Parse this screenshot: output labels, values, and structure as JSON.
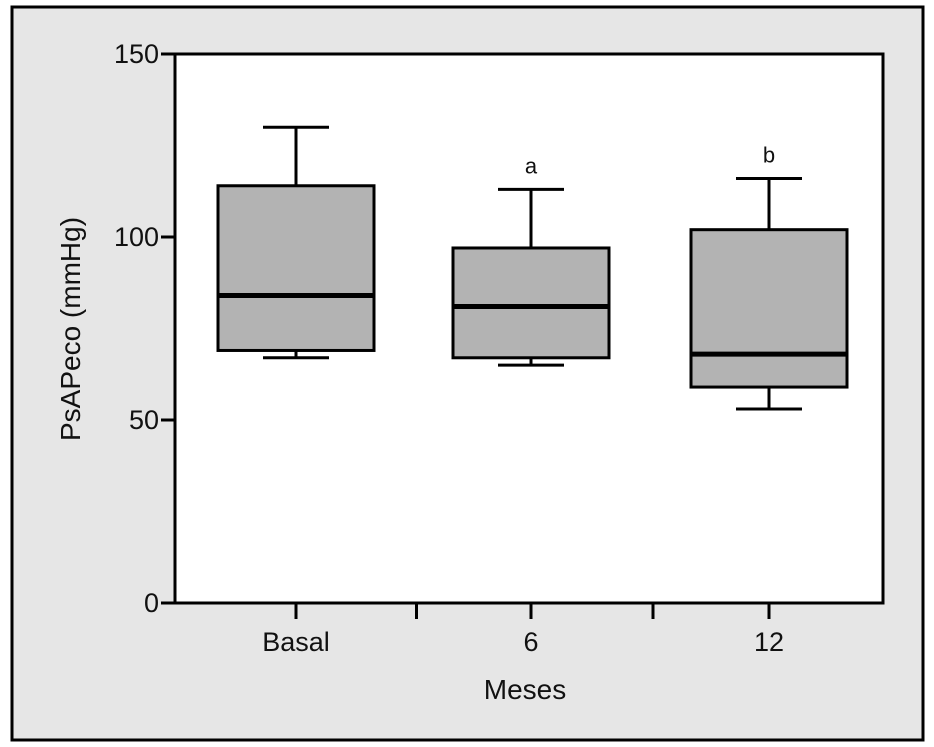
{
  "chart_data": {
    "type": "boxplot",
    "title": "",
    "xlabel": "Meses",
    "ylabel": "PsAPeco (mmHg)",
    "ylim": [
      0,
      150
    ],
    "yticks": [
      "0",
      "50",
      "100",
      "150"
    ],
    "categories": [
      "Basal",
      "6",
      "12"
    ],
    "boxes": [
      {
        "category": "Basal",
        "whisker_low": 67,
        "q1": 69,
        "median": 84,
        "q3": 114,
        "whisker_high": 130,
        "annotation": ""
      },
      {
        "category": "6",
        "whisker_low": 65,
        "q1": 67,
        "median": 81,
        "q3": 97,
        "whisker_high": 113,
        "annotation": "a"
      },
      {
        "category": "12",
        "whisker_low": 53,
        "q1": 59,
        "median": 68,
        "q3": 102,
        "whisker_high": 116,
        "annotation": "b"
      }
    ],
    "grid": false,
    "legend": "none",
    "colors": {
      "box_fill": "#b3b3b3",
      "stroke": "#000000",
      "outer_background": "#e6e6e6",
      "plot_background": "#ffffff"
    }
  }
}
